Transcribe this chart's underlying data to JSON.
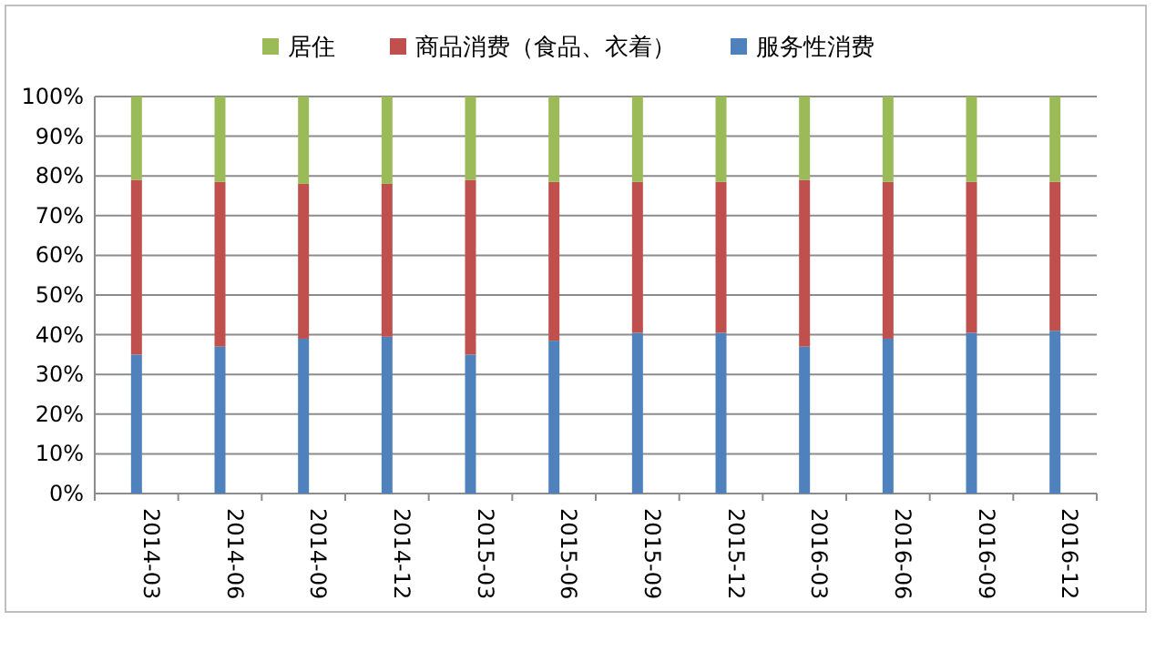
{
  "chart_data": {
    "type": "bar",
    "stacked": true,
    "legend": "top",
    "grid": "y",
    "categories": [
      "2014-03",
      "2014-06",
      "2014-09",
      "2014-12",
      "2015-03",
      "2015-06",
      "2015-09",
      "2015-12",
      "2016-03",
      "2016-06",
      "2016-09",
      "2016-12"
    ],
    "series": [
      {
        "name": "服务性消费",
        "color": "#4f81bd",
        "values": [
          35,
          37,
          39,
          39.5,
          35,
          38.5,
          40.5,
          40.5,
          37,
          39,
          40.5,
          41
        ]
      },
      {
        "name": "商品消费（食品、衣着）",
        "color": "#c0504d",
        "values": [
          44,
          41.5,
          39,
          38.5,
          44,
          40,
          38,
          38,
          42,
          39.5,
          38,
          37.5
        ]
      },
      {
        "name": "居住",
        "color": "#9bbb59",
        "values": [
          21,
          21.5,
          22,
          22,
          21,
          21.5,
          21.5,
          21.5,
          21,
          21.5,
          21.5,
          21.5
        ]
      }
    ],
    "ylim": [
      0,
      100
    ],
    "yticks": [
      {
        "value": 0,
        "label": "0%"
      },
      {
        "value": 10,
        "label": "10%"
      },
      {
        "value": 20,
        "label": "20%"
      },
      {
        "value": 30,
        "label": "30%"
      },
      {
        "value": 40,
        "label": "40%"
      },
      {
        "value": 50,
        "label": "50%"
      },
      {
        "value": 60,
        "label": "60%"
      },
      {
        "value": 70,
        "label": "70%"
      },
      {
        "value": 80,
        "label": "80%"
      },
      {
        "value": 90,
        "label": "90%"
      },
      {
        "value": 100,
        "label": "100%"
      }
    ]
  }
}
